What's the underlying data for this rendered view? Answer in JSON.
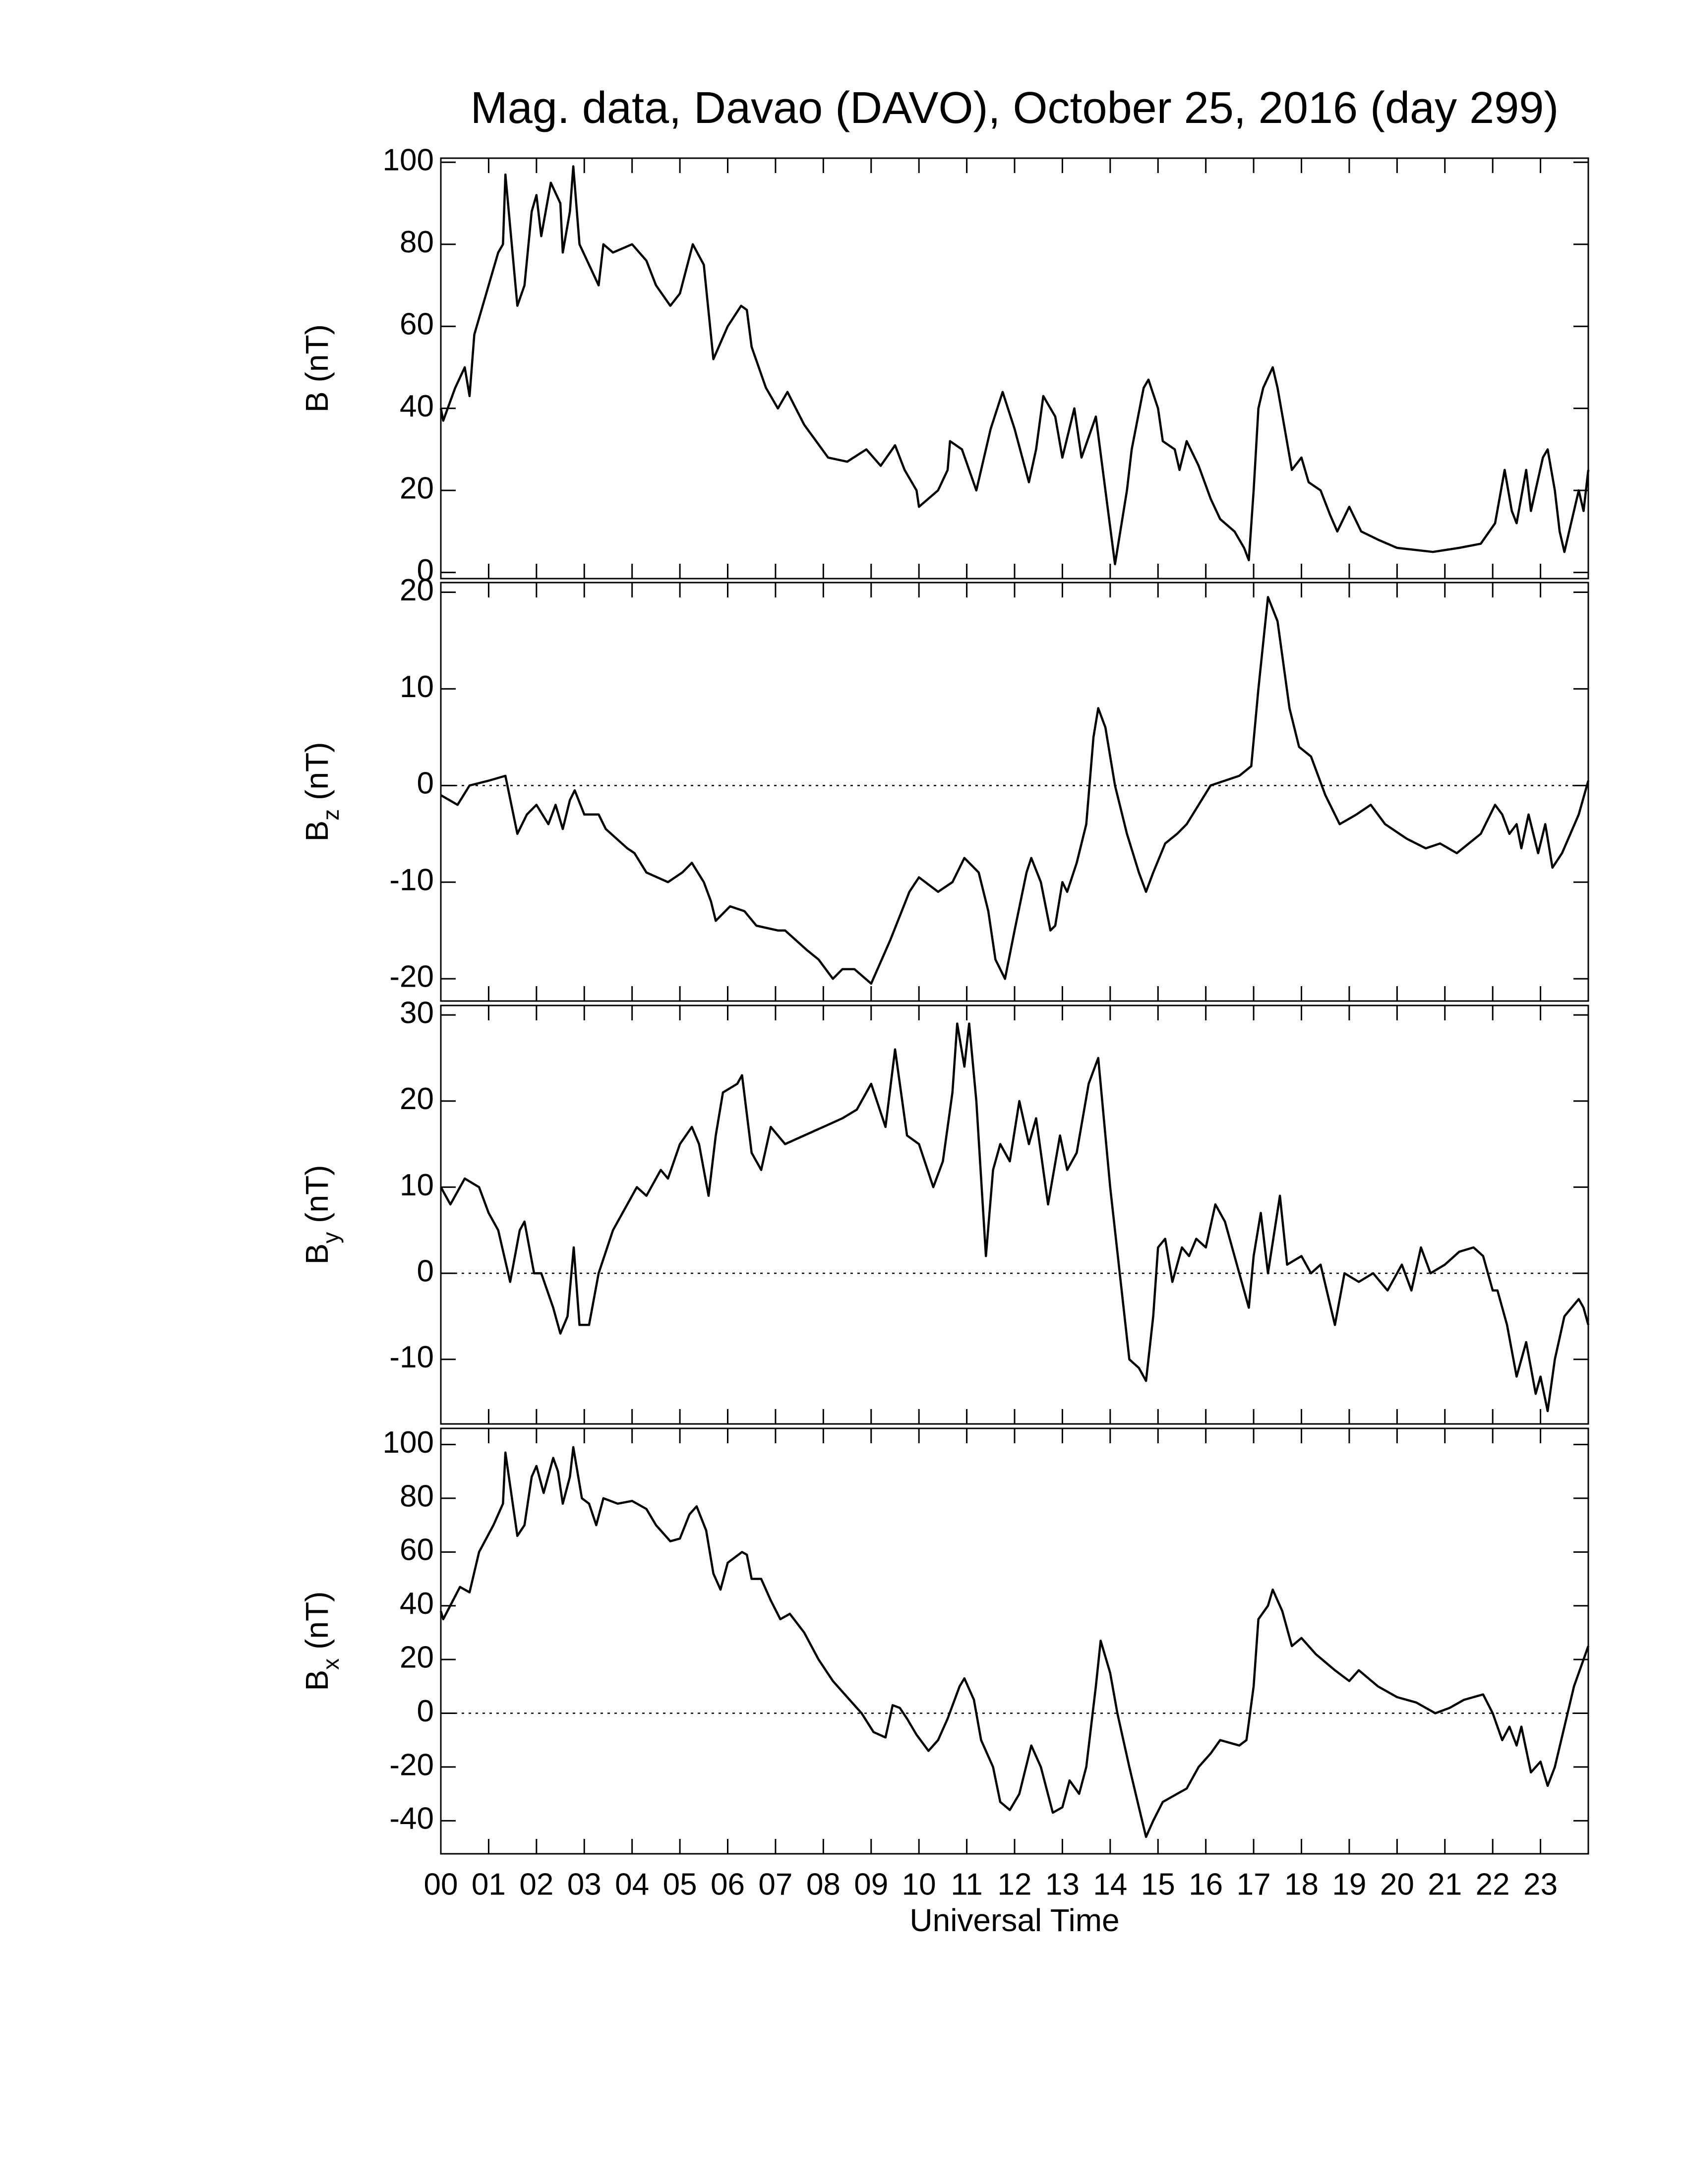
{
  "chart_data": [
    {
      "type": "line",
      "title": "Mag. data, Davao (DAVO), October 25, 2016 (day 299)",
      "ylabel": {
        "base": "B",
        "unit": "(nT)"
      },
      "zero_line": false,
      "color": "#000000",
      "xlim": [
        0,
        24
      ],
      "ylim": [
        -1.5,
        101
      ],
      "yticks": [
        0,
        20,
        40,
        60,
        80,
        100
      ],
      "x": [
        0,
        0.05,
        0.3,
        0.5,
        0.6,
        0.7,
        1.0,
        1.2,
        1.3,
        1.35,
        1.6,
        1.75,
        1.9,
        2.0,
        2.1,
        2.3,
        2.5,
        2.55,
        2.7,
        2.77,
        2.9,
        3.1,
        3.3,
        3.4,
        3.6,
        4.0,
        4.3,
        4.5,
        4.8,
        5.0,
        5.27,
        5.5,
        5.7,
        6.0,
        6.28,
        6.4,
        6.5,
        6.8,
        7.05,
        7.25,
        7.6,
        8.1,
        8.5,
        8.9,
        9.2,
        9.5,
        9.7,
        9.95,
        10.0,
        10.4,
        10.6,
        10.65,
        10.9,
        11.2,
        11.5,
        11.75,
        12.0,
        12.3,
        12.45,
        12.6,
        12.85,
        13.0,
        13.25,
        13.4,
        13.7,
        13.9,
        14.1,
        14.35,
        14.45,
        14.7,
        14.8,
        15.0,
        15.1,
        15.35,
        15.45,
        15.6,
        15.85,
        16.1,
        16.3,
        16.6,
        16.8,
        16.9,
        17.0,
        17.1,
        17.2,
        17.4,
        17.5,
        17.65,
        17.8,
        18.0,
        18.15,
        18.4,
        18.6,
        18.75,
        19.0,
        19.25,
        19.6,
        20.0,
        20.75,
        21.3,
        21.75,
        22.05,
        22.25,
        22.4,
        22.5,
        22.7,
        22.8,
        23.05,
        23.15,
        23.3,
        23.4,
        23.5,
        23.6,
        23.8,
        23.9,
        24.0
      ],
      "values": [
        40,
        37,
        45,
        50,
        43,
        58,
        70,
        78,
        80,
        97,
        65,
        70,
        88,
        92,
        82,
        95,
        90,
        78,
        88,
        99,
        80,
        75,
        70,
        80,
        78,
        80,
        76,
        70,
        65,
        68,
        80,
        75,
        52,
        60,
        65,
        64,
        55,
        45,
        40,
        44,
        36,
        28,
        27,
        30,
        26,
        31,
        25,
        20,
        16,
        20,
        25,
        32,
        30,
        20,
        35,
        44,
        35,
        22,
        30,
        43,
        38,
        28,
        40,
        28,
        38,
        20,
        2,
        20,
        30,
        45,
        47,
        40,
        32,
        30,
        25,
        32,
        26,
        18,
        13,
        10,
        6,
        3,
        20,
        40,
        45,
        50,
        45,
        35,
        25,
        28,
        22,
        20,
        14,
        10,
        16,
        10,
        8,
        6,
        5,
        6,
        7,
        12,
        25,
        15,
        12,
        25,
        15,
        28,
        30,
        20,
        10,
        5,
        10,
        20,
        15,
        25
      ]
    },
    {
      "type": "line",
      "ylabel": {
        "base": "B",
        "sub": "z",
        "unit": "(nT)"
      },
      "zero_line": true,
      "color": "#000000",
      "xlim": [
        0,
        24
      ],
      "ylim": [
        -22.3,
        21
      ],
      "yticks": [
        -20,
        -10,
        0,
        10,
        20
      ],
      "x": [
        0,
        0.35,
        0.6,
        1.0,
        1.35,
        1.6,
        1.8,
        2.0,
        2.25,
        2.4,
        2.55,
        2.7,
        2.8,
        3.0,
        3.3,
        3.45,
        3.9,
        4.05,
        4.3,
        4.75,
        5.05,
        5.25,
        5.5,
        5.65,
        5.75,
        6.05,
        6.35,
        6.6,
        7.05,
        7.2,
        7.65,
        7.9,
        8.2,
        8.4,
        8.65,
        9.0,
        9.4,
        9.8,
        10.0,
        10.4,
        10.7,
        10.95,
        11.25,
        11.45,
        11.6,
        11.8,
        12.0,
        12.25,
        12.35,
        12.55,
        12.75,
        12.85,
        13.0,
        13.1,
        13.3,
        13.5,
        13.65,
        13.75,
        13.9,
        14.1,
        14.35,
        14.6,
        14.75,
        14.9,
        15.15,
        15.4,
        15.6,
        15.85,
        16.1,
        16.7,
        16.95,
        17.1,
        17.3,
        17.5,
        17.75,
        17.95,
        18.2,
        18.5,
        18.8,
        19.15,
        19.45,
        19.75,
        20.2,
        20.6,
        20.9,
        21.25,
        21.75,
        22.05,
        22.2,
        22.35,
        22.5,
        22.6,
        22.75,
        22.95,
        23.1,
        23.25,
        23.45,
        23.8,
        24.0
      ],
      "values": [
        -1,
        -2,
        0,
        0.5,
        1,
        -5,
        -3,
        -2,
        -4,
        -2,
        -4.5,
        -1.5,
        -0.5,
        -3,
        -3,
        -4.5,
        -6.5,
        -7,
        -9,
        -10,
        -9,
        -8,
        -10,
        -12,
        -14,
        -12.5,
        -13,
        -14.5,
        -15,
        -15,
        -17,
        -18,
        -20,
        -19,
        -19,
        -20.5,
        -16,
        -11,
        -9.5,
        -11,
        -10,
        -7.5,
        -9,
        -13,
        -18,
        -20,
        -15,
        -9,
        -7.5,
        -10,
        -15,
        -14.5,
        -10,
        -11,
        -8,
        -4,
        5,
        8,
        6,
        0,
        -5,
        -9,
        -11,
        -9,
        -6,
        -5,
        -4,
        -2,
        0,
        1,
        2,
        10,
        19.5,
        17,
        8,
        4,
        3,
        -1,
        -4,
        -3,
        -2,
        -4,
        -5.5,
        -6.5,
        -6,
        -7,
        -5,
        -2,
        -3,
        -5,
        -4,
        -6.5,
        -3,
        -7,
        -4,
        -8.5,
        -7,
        -3,
        0.5
      ]
    },
    {
      "type": "line",
      "ylabel": {
        "base": "B",
        "sub": "y",
        "unit": "(nT)"
      },
      "zero_line": true,
      "color": "#000000",
      "xlim": [
        0,
        24
      ],
      "ylim": [
        -17.5,
        31.1
      ],
      "yticks": [
        -10,
        0,
        10,
        20,
        30
      ],
      "x": [
        0,
        0.2,
        0.5,
        0.8,
        1.0,
        1.2,
        1.45,
        1.65,
        1.75,
        1.95,
        2.1,
        2.35,
        2.5,
        2.65,
        2.78,
        2.9,
        3.1,
        3.3,
        3.6,
        3.9,
        4.1,
        4.3,
        4.6,
        4.75,
        5.0,
        5.25,
        5.4,
        5.6,
        5.75,
        5.9,
        6.2,
        6.3,
        6.5,
        6.7,
        6.9,
        7.2,
        7.6,
        8.0,
        8.4,
        8.7,
        9.0,
        9.3,
        9.5,
        9.75,
        10.0,
        10.3,
        10.5,
        10.7,
        10.8,
        10.95,
        11.05,
        11.2,
        11.4,
        11.55,
        11.7,
        11.9,
        12.1,
        12.3,
        12.45,
        12.7,
        12.95,
        13.1,
        13.3,
        13.55,
        13.75,
        14.0,
        14.2,
        14.4,
        14.6,
        14.75,
        14.9,
        15.0,
        15.15,
        15.3,
        15.5,
        15.65,
        15.8,
        16.0,
        16.2,
        16.4,
        16.55,
        16.9,
        17.0,
        17.15,
        17.3,
        17.55,
        17.7,
        18.0,
        18.2,
        18.4,
        18.7,
        18.9,
        19.2,
        19.5,
        19.8,
        20.1,
        20.3,
        20.5,
        20.7,
        21.0,
        21.3,
        21.6,
        21.8,
        22.0,
        22.1,
        22.3,
        22.5,
        22.7,
        22.9,
        23.0,
        23.15,
        23.3,
        23.5,
        23.8,
        23.9,
        24.0
      ],
      "values": [
        10,
        8,
        11,
        10,
        7,
        5,
        -1,
        5,
        6,
        0,
        0,
        -4,
        -7,
        -5,
        3,
        -6,
        -6,
        0,
        5,
        8,
        10,
        9,
        12,
        11,
        15,
        17,
        15,
        9,
        16,
        21,
        22,
        23,
        14,
        12,
        17,
        15,
        16,
        17,
        18,
        19,
        22,
        17,
        26,
        16,
        15,
        10,
        13,
        21,
        29,
        24,
        29,
        20,
        2,
        12,
        15,
        13,
        20,
        15,
        18,
        8,
        16,
        12,
        14,
        22,
        25,
        10,
        0,
        -10,
        -11,
        -12.5,
        -5,
        3,
        4,
        -1,
        3,
        2,
        4,
        3,
        8,
        6,
        3,
        -4,
        2,
        7,
        0,
        9,
        1,
        2,
        0,
        1,
        -6,
        0,
        -1,
        0,
        -2,
        1,
        -2,
        3,
        0,
        1,
        2.5,
        3,
        2,
        -2,
        -2,
        -6,
        -12,
        -8,
        -14,
        -12,
        -16,
        -10,
        -5,
        -3,
        -4,
        -6
      ]
    },
    {
      "type": "line",
      "ylabel": {
        "base": "B",
        "sub": "x",
        "unit": "(nT)"
      },
      "zero_line": true,
      "color": "#000000",
      "xlabel": "Universal Time",
      "xlim": [
        0,
        24
      ],
      "ylim": [
        -52.3,
        106
      ],
      "yticks": [
        -40,
        -20,
        0,
        20,
        40,
        60,
        80,
        100
      ],
      "xticks": [
        {
          "value": 0,
          "label": "00"
        },
        {
          "value": 1,
          "label": "01"
        },
        {
          "value": 2,
          "label": "02"
        },
        {
          "value": 3,
          "label": "03"
        },
        {
          "value": 4,
          "label": "04"
        },
        {
          "value": 5,
          "label": "05"
        },
        {
          "value": 6,
          "label": "06"
        },
        {
          "value": 7,
          "label": "07"
        },
        {
          "value": 8,
          "label": "08"
        },
        {
          "value": 9,
          "label": "09"
        },
        10,
        11,
        12,
        13,
        14,
        15,
        16,
        17,
        18,
        19,
        20,
        21,
        22,
        23
      ],
      "x": [
        0,
        0.05,
        0.4,
        0.6,
        0.8,
        1.1,
        1.3,
        1.35,
        1.6,
        1.75,
        1.9,
        2.0,
        2.15,
        2.35,
        2.45,
        2.55,
        2.7,
        2.77,
        2.95,
        3.1,
        3.25,
        3.4,
        3.7,
        4.0,
        4.3,
        4.5,
        4.8,
        5.0,
        5.2,
        5.35,
        5.55,
        5.7,
        5.85,
        6.0,
        6.3,
        6.4,
        6.5,
        6.7,
        6.9,
        7.1,
        7.3,
        7.6,
        7.9,
        8.2,
        8.5,
        8.8,
        9.05,
        9.3,
        9.45,
        9.6,
        9.75,
        9.95,
        10.2,
        10.4,
        10.6,
        10.85,
        10.95,
        11.15,
        11.3,
        11.55,
        11.7,
        11.9,
        12.1,
        12.35,
        12.55,
        12.8,
        13.0,
        13.15,
        13.35,
        13.5,
        13.7,
        13.8,
        14.0,
        14.15,
        14.4,
        14.6,
        14.75,
        14.9,
        15.1,
        15.4,
        15.6,
        15.85,
        16.1,
        16.3,
        16.7,
        16.85,
        17.0,
        17.1,
        17.3,
        17.4,
        17.6,
        17.8,
        18.0,
        18.3,
        18.7,
        19.0,
        19.2,
        19.6,
        20.0,
        20.4,
        20.8,
        21.1,
        21.4,
        21.8,
        22.0,
        22.2,
        22.35,
        22.5,
        22.6,
        22.8,
        23.0,
        23.15,
        23.3,
        23.5,
        23.7,
        23.9,
        24.0
      ],
      "values": [
        38,
        35,
        47,
        45,
        60,
        70,
        78,
        97,
        66,
        70,
        88,
        92,
        82,
        95,
        90,
        78,
        88,
        99,
        80,
        78,
        70,
        80,
        78,
        79,
        76,
        70,
        64,
        65,
        74,
        77,
        68,
        52,
        46,
        56,
        60,
        59,
        50,
        50,
        42,
        35,
        37,
        30,
        20,
        12,
        6,
        0,
        -7,
        -9,
        3,
        2,
        -2,
        -8,
        -14,
        -10,
        -2,
        10,
        13,
        5,
        -10,
        -20,
        -33,
        -36,
        -30,
        -12,
        -20,
        -37,
        -35,
        -25,
        -30,
        -20,
        10,
        27,
        15,
        0,
        -20,
        -35,
        -46,
        -40,
        -33,
        -30,
        -28,
        -20,
        -15,
        -10,
        -12,
        -10,
        10,
        35,
        40,
        46,
        38,
        25,
        28,
        22,
        16,
        12,
        16,
        10,
        6,
        4,
        0,
        2,
        5,
        7,
        0,
        -10,
        -5,
        -12,
        -5,
        -22,
        -18,
        -27,
        -20,
        -5,
        10,
        20,
        25
      ]
    }
  ]
}
